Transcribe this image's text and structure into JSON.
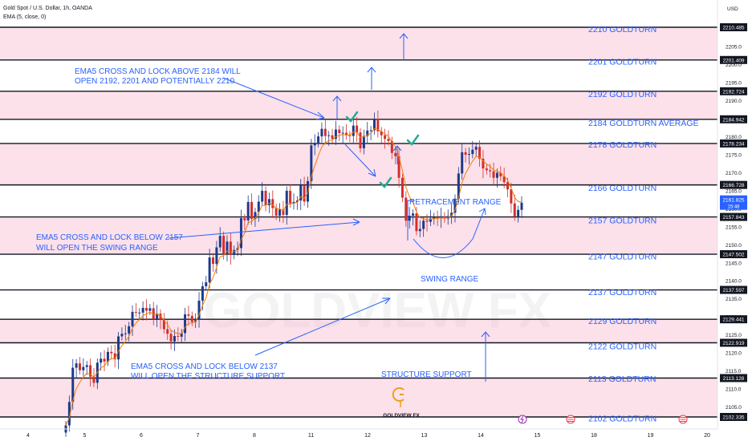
{
  "header": {
    "symbol_title": "Gold Spot / U.S. Dollar, 1h, OANDA",
    "indicator": "EMA (5, close, 0)",
    "currency": "USD"
  },
  "chart_data": {
    "type": "candlestick",
    "y_range": [
      2100,
      2215
    ],
    "price_ticks": [
      2105,
      2110,
      2115,
      2120,
      2125,
      2130,
      2135,
      2140,
      2145,
      2150,
      2155,
      2160,
      2165,
      2170,
      2175,
      2180,
      2185,
      2190,
      2195,
      2200,
      2205,
      2210
    ],
    "x_dates": [
      "4",
      "5",
      "6",
      "7",
      "8",
      "11",
      "12",
      "13",
      "14",
      "15",
      "18",
      "19",
      "20"
    ],
    "level_lines": [
      2210.485,
      2201.409,
      2192.724,
      2184.942,
      2178.234,
      2166.728,
      2157.843,
      2147.502,
      2137.597,
      2129.441,
      2122.919,
      2113.128,
      2102.335
    ],
    "level_badges": [
      "2210.485",
      "2201.409",
      "2192.724",
      "2184.942",
      "2178.234",
      "2166.728",
      "2157.843",
      "2147.502",
      "2137.597",
      "2129.441",
      "2122.919",
      "2113.128",
      "2102.335"
    ],
    "last_price": "2161.825",
    "countdown": "15:48",
    "zones": [
      [
        2201.409,
        2210.485
      ],
      [
        2184.942,
        2192.724
      ],
      [
        2166.728,
        2178.234
      ],
      [
        2147.502,
        2157.843
      ],
      [
        2122.919,
        2129.441
      ],
      [
        2102.335,
        2113.128
      ]
    ],
    "level_labels": [
      {
        "text": "2210 GOLDTURN",
        "price": 2210
      },
      {
        "text": "2201 GOLDTURN",
        "price": 2201
      },
      {
        "text": "2192 GOLDTURN",
        "price": 2192
      },
      {
        "text": "2184 GOLDTURN AVERAGE",
        "price": 2184
      },
      {
        "text": "2178 GOLDTURN",
        "price": 2178
      },
      {
        "text": "2166 GOLDTURN",
        "price": 2166
      },
      {
        "text": "2157 GOLDTURN",
        "price": 2157
      },
      {
        "text": "2147 GOLDTURN",
        "price": 2147
      },
      {
        "text": "2137 GOLDTURN",
        "price": 2137
      },
      {
        "text": "2129 GOLDTURN",
        "price": 2129
      },
      {
        "text": "2122 GOLDTURN",
        "price": 2122
      },
      {
        "text": "2113 GOLDTURN",
        "price": 2113
      },
      {
        "text": "2102 GOLDTURN",
        "price": 2102
      }
    ],
    "annotations": [
      {
        "lines": [
          "EMA5 CROSS AND LOCK ABOVE 2184 WILL",
          "OPEN 2192, 2201 AND POTENTIALLY 2210"
        ]
      },
      {
        "lines": [
          "EMA5 CROSS AND LOCK BELOW 2157",
          "WILL OPEN THE SWING RANGE"
        ]
      },
      {
        "lines": [
          "EMA5 CROSS AND LOCK BELOW 2137",
          "WILL OPEN THE STRUCTURE SUPPORT"
        ]
      },
      {
        "lines": [
          "RETRACEMENT RANGE"
        ]
      },
      {
        "lines": [
          "SWING RANGE"
        ]
      },
      {
        "lines": [
          "STRUCTURE SUPPORT"
        ]
      }
    ],
    "closes": [
      2100.0,
      2106.5,
      2116.0,
      2117.2,
      2115.3,
      2116.2,
      2116.7,
      2113.5,
      2111.8,
      2117.4,
      2118.5,
      2117.7,
      2120.4,
      2120.0,
      2118.3,
      2124.7,
      2125.4,
      2125.5,
      2127.5,
      2131.5,
      2131.3,
      2131.3,
      2132.6,
      2131.8,
      2132.5,
      2129.5,
      2131.0,
      2129.4,
      2126.7,
      2125.4,
      2123.3,
      2124.8,
      2124.6,
      2125.6,
      2130.8,
      2130.4,
      2128.7,
      2129.3,
      2134.6,
      2138.6,
      2139.7,
      2146.6,
      2144.8,
      2149.4,
      2152.6,
      2147.7,
      2151.0,
      2147.3,
      2148.7,
      2149.2,
      2157.5,
      2156.9,
      2162.0,
      2157.3,
      2159.2,
      2162.1,
      2165.1,
      2161.1,
      2162.8,
      2160.3,
      2158.2,
      2159.9,
      2158.4,
      2165.1,
      2161.6,
      2162.0,
      2162.4,
      2166.6,
      2162.1,
      2167.8,
      2177.7,
      2178.4,
      2180.2,
      2182.3,
      2180.3,
      2180.5,
      2179.5,
      2182.1,
      2181.1,
      2181.2,
      2180.5,
      2180.3,
      2183.2,
      2181.3,
      2176.9,
      2180.3,
      2181.8,
      2181.9,
      2185.0,
      2181.6,
      2180.5,
      2179.5,
      2178.9,
      2175.6,
      2174.7,
      2168.7,
      2163.2,
      2156.8,
      2158.2,
      2158.8,
      2153.9,
      2154.5,
      2156.8,
      2156.5,
      2157.4,
      2157.8,
      2157.5,
      2158.0,
      2157.4,
      2158.1,
      2159.0,
      2162.9,
      2169.9,
      2175.8,
      2175.1,
      2175.3,
      2176.5,
      2177.3,
      2174.0,
      2171.3,
      2170.8,
      2170.5,
      2168.7,
      2170.1,
      2169.1,
      2167.5,
      2165.5,
      2161.6,
      2158.0,
      2159.8,
      2161.8
    ]
  },
  "logo": {
    "brand": "GOLDVIEW FX",
    "watermark": "GOLDVIEW FX"
  }
}
